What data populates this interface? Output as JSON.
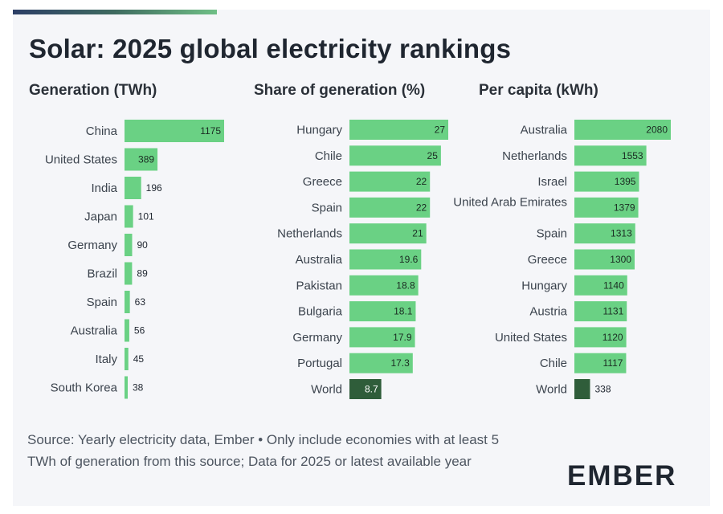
{
  "title": "Solar: 2025 global electricity rankings",
  "source": "Source: Yearly electricity data, Ember • Only include economies with at least 5 TWh of generation from this source; Data for 2025 or latest available year",
  "logo": "EMBER",
  "colors": {
    "bar": "#6ad184",
    "world_bar": "#2f5d3a",
    "background": "#f5f6f9"
  },
  "chart_data": [
    {
      "type": "bar",
      "orientation": "horizontal",
      "title": "Generation (TWh)",
      "categories": [
        "China",
        "United States",
        "India",
        "Japan",
        "Germany",
        "Brazil",
        "Spain",
        "Australia",
        "Italy",
        "South Korea"
      ],
      "values": [
        1175,
        389,
        196,
        101,
        90,
        89,
        63,
        56,
        45,
        38
      ],
      "value_labels": [
        "1175",
        "389",
        "196",
        "101",
        "90",
        "89",
        "63",
        "56",
        "45",
        "38"
      ],
      "grid": false
    },
    {
      "type": "bar",
      "orientation": "horizontal",
      "title": "Share of generation (%)",
      "categories": [
        "Hungary",
        "Chile",
        "Greece",
        "Spain",
        "Netherlands",
        "Australia",
        "Pakistan",
        "Bulgaria",
        "Germany",
        "Portugal",
        "World"
      ],
      "values": [
        27,
        25,
        22,
        22,
        21,
        19.6,
        18.8,
        18.1,
        17.9,
        17.3,
        8.7
      ],
      "value_labels": [
        "27",
        "25",
        "22",
        "22",
        "21",
        "19.6",
        "18.8",
        "18.1",
        "17.9",
        "17.3",
        "8.7"
      ],
      "highlight": "World",
      "grid": false
    },
    {
      "type": "bar",
      "orientation": "horizontal",
      "title": "Per capita (kWh)",
      "categories": [
        "Australia",
        "Netherlands",
        "Israel",
        "United Arab Emirates",
        "Spain",
        "Greece",
        "Hungary",
        "Austria",
        "United States",
        "Chile",
        "World"
      ],
      "values": [
        2080,
        1553,
        1395,
        1379,
        1313,
        1300,
        1140,
        1131,
        1120,
        1117,
        338
      ],
      "value_labels": [
        "2080",
        "1553",
        "1395",
        "1379",
        "1313",
        "1300",
        "1140",
        "1131",
        "1120",
        "1117",
        "338"
      ],
      "highlight": "World",
      "grid": false
    }
  ]
}
